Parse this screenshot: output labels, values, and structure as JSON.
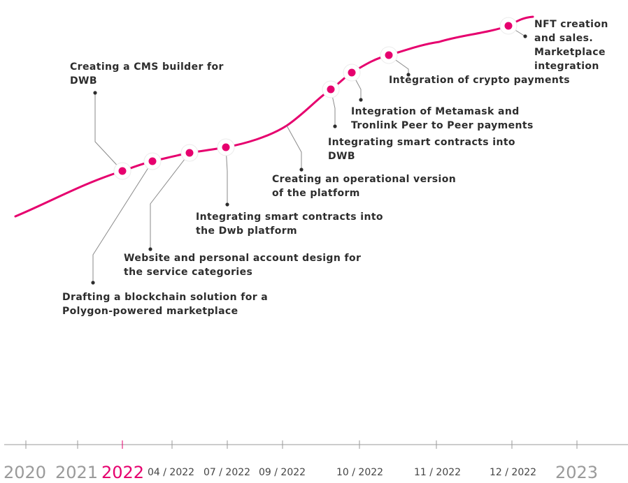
{
  "colors": {
    "accent": "#e6006e",
    "text": "#2d2d2d",
    "muted": "#9a9a9a",
    "axis": "#9a9a9a"
  },
  "milestones": [
    {
      "line1": "Creating a CMS builder for",
      "line2": "DWB"
    },
    {
      "line1": "Drafting a blockchain solution for a",
      "line2": "Polygon-powered marketplace"
    },
    {
      "line1": "Website and personal account design for",
      "line2": "the service categories"
    },
    {
      "line1": "Integrating smart contracts into",
      "line2": "the Dwb platform"
    },
    {
      "line1": "Creating an operational version",
      "line2": "of the platform"
    },
    {
      "line1": "Integrating smart contracts into",
      "line2": "DWB"
    },
    {
      "line1": "Integration of Metamask and",
      "line2": "Tronlink Peer to Peer payments"
    },
    {
      "line1": "Integration of crypto payments"
    },
    {
      "line1": "NFT creation",
      "line2": "and sales.",
      "line3": "Marketplace",
      "line4": "integration"
    }
  ],
  "timeline": {
    "years_left": [
      "2020",
      "2021",
      "2022"
    ],
    "active_year": "2022",
    "months": [
      "04 / 2022",
      "07 / 2022",
      "09 / 2022",
      "10 / 2022",
      "11 / 2022",
      "12 / 2022"
    ],
    "year_right": "2023"
  }
}
